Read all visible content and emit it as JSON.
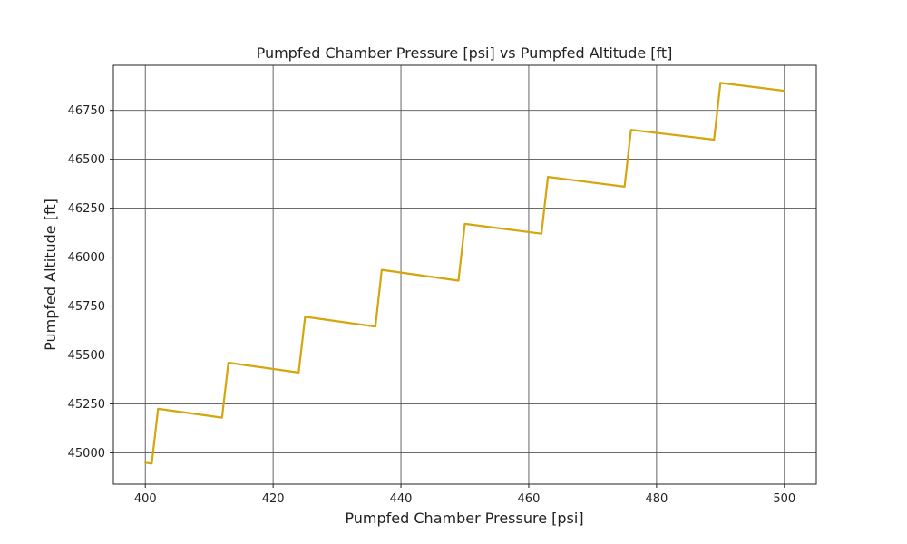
{
  "chart_data": {
    "type": "line",
    "title": "Pumpfed Chamber Pressure [psi] vs Pumpfed Altitude [ft]",
    "xlabel": "Pumpfed Chamber Pressure [psi]",
    "ylabel": "Pumpfed Altitude [ft]",
    "xlim": [
      395,
      505
    ],
    "ylim": [
      44840,
      46980
    ],
    "xticks": [
      400,
      420,
      440,
      460,
      480,
      500
    ],
    "yticks": [
      45000,
      45250,
      45500,
      45750,
      46000,
      46250,
      46500,
      46750
    ],
    "grid": true,
    "color": "#d4a50c",
    "series": [
      {
        "x": [
          400,
          401,
          402,
          412,
          413,
          424,
          425,
          436,
          437,
          449,
          450,
          462,
          463,
          475,
          476,
          489,
          490,
          500
        ],
        "y": [
          44950,
          44945,
          45225,
          45180,
          45460,
          45410,
          45695,
          45645,
          45935,
          45880,
          46170,
          46120,
          46410,
          46360,
          46650,
          46600,
          46890,
          46850
        ]
      }
    ]
  }
}
